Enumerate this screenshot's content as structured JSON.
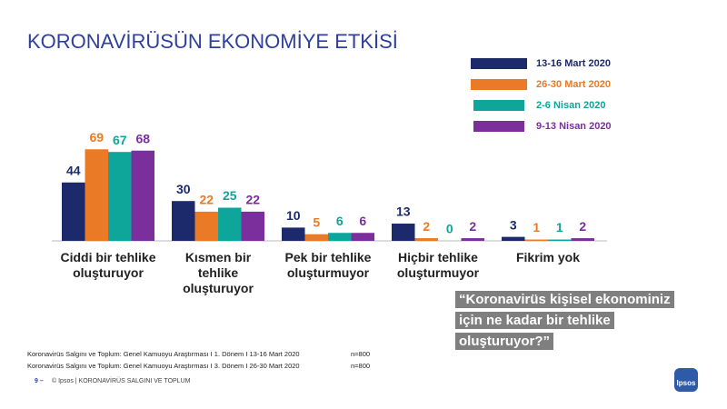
{
  "chart_data": {
    "type": "bar",
    "title": "KORONAVİRÜSÜN EKONOMİYE ETKİSİ",
    "categories": [
      "Ciddi bir tehlike oluşturuyor",
      "Kısmen bir tehlike oluşturuyor",
      "Pek bir tehlike oluşturmuyor",
      "Hiçbir tehlike oluşturmuyor",
      "Fikrim yok"
    ],
    "series": [
      {
        "name": "13-16 Mart 2020",
        "color": "#1c2a6b",
        "values": [
          44,
          30,
          10,
          13,
          3
        ]
      },
      {
        "name": "26-30 Mart 2020",
        "color": "#ea7a25",
        "values": [
          69,
          22,
          5,
          2,
          1
        ]
      },
      {
        "name": "2-6 Nisan 2020",
        "color": "#0ea59b",
        "values": [
          67,
          25,
          6,
          0,
          1
        ]
      },
      {
        "name": "9-13 Nisan 2020",
        "color": "#7a2f9c",
        "values": [
          68,
          22,
          6,
          2,
          2
        ]
      }
    ]
  },
  "question": [
    "“Koronavirüs kişisel ekonominiz",
    "için ne kadar bir tehlike",
    "oluşturuyor?”"
  ],
  "notes": [
    {
      "text": "Koronavirüs Salgını ve Toplum:  Genel Kamuoyu Araştırması I 1. Dönem I 13-16 Mart 2020",
      "n": "n=800"
    },
    {
      "text": "Koronavirüs Salgını ve Toplum:  Genel Kamuoyu Araştırması I 3. Dönem I 26-30 Mart 2020",
      "n": "n=800"
    }
  ],
  "footer": {
    "page": "9 –",
    "text": "© Ipsos | KORONAVİRÜS  SALGINI  VE TOPLUM",
    "logo": "Ipsos"
  }
}
